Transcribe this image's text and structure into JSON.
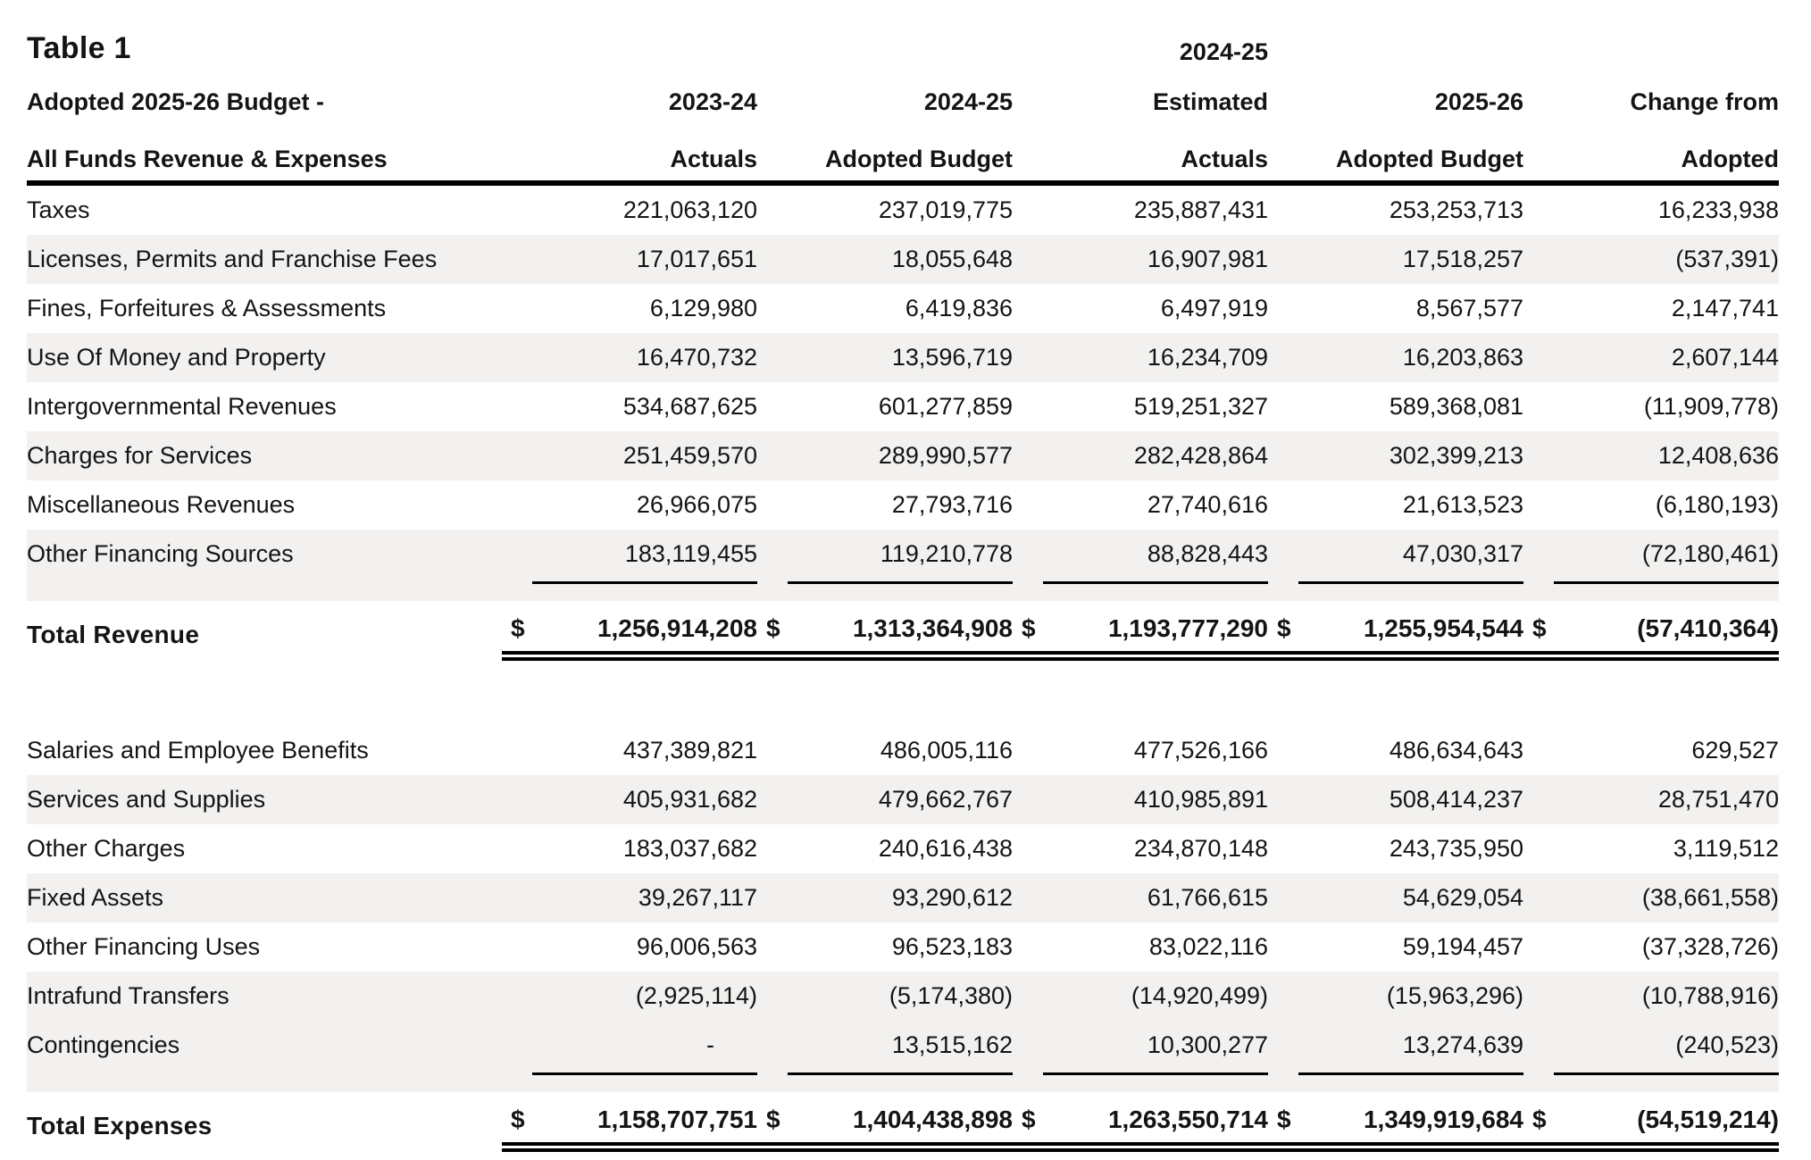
{
  "title": "Table 1",
  "header": {
    "row_title_line1": "Adopted 2025-26 Budget -",
    "row_title_line2": "All Funds Revenue & Expenses",
    "columns": [
      {
        "line0": "",
        "line1": "2023-24",
        "line2": "Actuals"
      },
      {
        "line0": "",
        "line1": "2024-25",
        "line2": "Adopted Budget"
      },
      {
        "line0": "2024-25",
        "line1": "Estimated",
        "line2": "Actuals"
      },
      {
        "line0": "",
        "line1": "2025-26",
        "line2": "Adopted Budget"
      },
      {
        "line0": "",
        "line1": "Change from",
        "line2": "Adopted"
      }
    ]
  },
  "revenue_rows": [
    {
      "label": "Taxes",
      "values": [
        "221,063,120",
        "237,019,775",
        "235,887,431",
        "253,253,713",
        "16,233,938"
      ]
    },
    {
      "label": "Licenses, Permits and Franchise Fees",
      "values": [
        "17,017,651",
        "18,055,648",
        "16,907,981",
        "17,518,257",
        "(537,391)"
      ]
    },
    {
      "label": "Fines, Forfeitures & Assessments",
      "values": [
        "6,129,980",
        "6,419,836",
        "6,497,919",
        "8,567,577",
        "2,147,741"
      ]
    },
    {
      "label": "Use Of Money and Property",
      "values": [
        "16,470,732",
        "13,596,719",
        "16,234,709",
        "16,203,863",
        "2,607,144"
      ]
    },
    {
      "label": "Intergovernmental Revenues",
      "values": [
        "534,687,625",
        "601,277,859",
        "519,251,327",
        "589,368,081",
        "(11,909,778)"
      ]
    },
    {
      "label": "Charges for Services",
      "values": [
        "251,459,570",
        "289,990,577",
        "282,428,864",
        "302,399,213",
        "12,408,636"
      ]
    },
    {
      "label": "Miscellaneous Revenues",
      "values": [
        "26,966,075",
        "27,793,716",
        "27,740,616",
        "21,613,523",
        "(6,180,193)"
      ]
    },
    {
      "label": "Other Financing Sources",
      "values": [
        "183,119,455",
        "119,210,778",
        "88,828,443",
        "47,030,317",
        "(72,180,461)"
      ]
    }
  ],
  "total_revenue": {
    "label": "Total Revenue",
    "currency": "$",
    "values": [
      "1,256,914,208",
      "1,313,364,908",
      "1,193,777,290",
      "1,255,954,544",
      "(57,410,364)"
    ]
  },
  "expense_rows": [
    {
      "label": "Salaries and Employee Benefits",
      "values": [
        "437,389,821",
        "486,005,116",
        "477,526,166",
        "486,634,643",
        "629,527"
      ]
    },
    {
      "label": "Services and Supplies",
      "values": [
        "405,931,682",
        "479,662,767",
        "410,985,891",
        "508,414,237",
        "28,751,470"
      ]
    },
    {
      "label": "Other Charges",
      "values": [
        "183,037,682",
        "240,616,438",
        "234,870,148",
        "243,735,950",
        "3,119,512"
      ]
    },
    {
      "label": "Fixed Assets",
      "values": [
        "39,267,117",
        "93,290,612",
        "61,766,615",
        "54,629,054",
        "(38,661,558)"
      ]
    },
    {
      "label": "Other Financing Uses",
      "values": [
        "96,006,563",
        "96,523,183",
        "83,022,116",
        "59,194,457",
        "(37,328,726)"
      ]
    },
    {
      "label": "Intrafund Transfers",
      "values": [
        "(2,925,114)",
        "(5,174,380)",
        "(14,920,499)",
        "(15,963,296)",
        "(10,788,916)"
      ]
    },
    {
      "label": "Contingencies",
      "values": [
        "-",
        "13,515,162",
        "10,300,277",
        "13,274,639",
        "(240,523)"
      ]
    }
  ],
  "total_expenses": {
    "label": "Total Expenses",
    "currency": "$",
    "values": [
      "1,158,707,751",
      "1,404,438,898",
      "1,263,550,714",
      "1,349,919,684",
      "(54,519,214)"
    ]
  },
  "colors": {
    "text": "#141414",
    "stripe": "#f2f1ef",
    "rule": "#000000"
  }
}
